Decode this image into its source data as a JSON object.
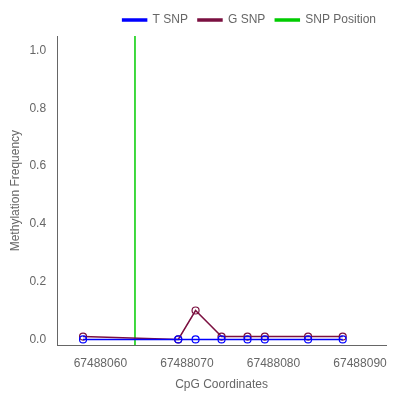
{
  "chart_data": {
    "type": "line",
    "xlabel": "CpG Coordinates",
    "ylabel": "Methylation Frequency",
    "x": [
      67488058,
      67488069,
      67488071,
      67488074,
      67488077,
      67488079,
      67488084,
      67488088
    ],
    "series": [
      {
        "name": "T SNP",
        "color": "#0000FF",
        "marker": "circle",
        "values": [
          0.0,
          0.0,
          0.0,
          0.0,
          0.0,
          0.0,
          0.0,
          0.0
        ]
      },
      {
        "name": "G SNP",
        "color": "#7B1040",
        "marker": "circle",
        "values": [
          0.01,
          0.0,
          0.1,
          0.01,
          0.01,
          0.01,
          0.01,
          0.01
        ]
      },
      {
        "name": "SNP Position",
        "type": "vline",
        "color": "#00CC00",
        "x": 67488064
      }
    ],
    "xlim": [
      67488055,
      67488093
    ],
    "ylim": [
      -0.02,
      1.05
    ],
    "xticks": [
      67488060,
      67488070,
      67488080,
      67488090
    ],
    "yticks": [
      {
        "value": 0.0,
        "label": "0.0"
      },
      {
        "value": 0.2,
        "label": "0.2"
      },
      {
        "value": 0.4,
        "label": "0.4"
      },
      {
        "value": 0.6,
        "label": "0.6"
      },
      {
        "value": 0.8,
        "label": "0.8"
      },
      {
        "value": 1.0,
        "label": "1.0"
      }
    ],
    "grid": false,
    "legend": "upper right"
  }
}
